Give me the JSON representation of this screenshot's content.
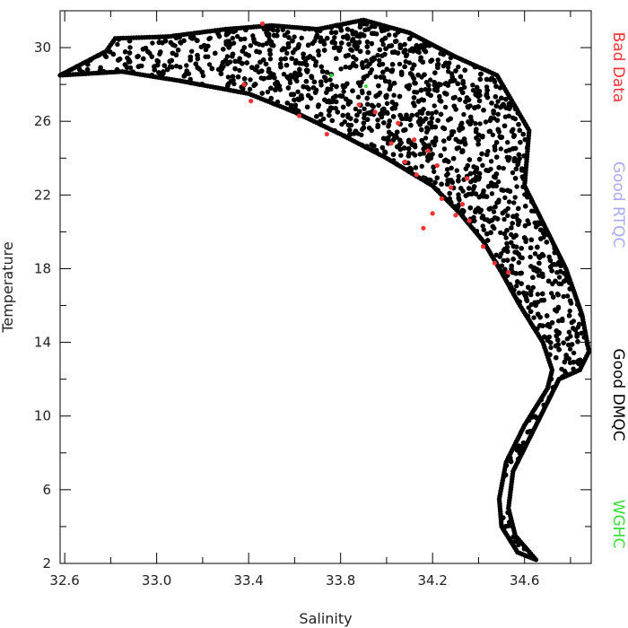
{
  "chart_data": {
    "type": "scatter",
    "title": "",
    "xlabel": "Salinity",
    "ylabel": "Temperature",
    "xlim": [
      32.58,
      34.89
    ],
    "ylim": [
      2,
      32
    ],
    "x_ticks": [
      32.6,
      33.0,
      33.4,
      33.8,
      34.2,
      34.6
    ],
    "x_tick_labels": [
      "32.6",
      "33.0",
      "33.4",
      "33.8",
      "34.2",
      "34.6"
    ],
    "y_ticks": [
      2,
      6,
      10,
      14,
      18,
      22,
      26,
      30
    ],
    "y_tick_labels": [
      "2",
      "6",
      "10",
      "14",
      "18",
      "22",
      "26",
      "30"
    ],
    "grid": false,
    "legend_position": "right, vertical",
    "series": [
      {
        "name": "Bad Data",
        "color": "#ff3333",
        "points": [
          [
            33.46,
            31.3
          ],
          [
            33.38,
            28.0
          ],
          [
            33.41,
            27.1
          ],
          [
            33.62,
            26.3
          ],
          [
            33.74,
            25.3
          ],
          [
            33.95,
            26.5
          ],
          [
            34.05,
            25.9
          ],
          [
            34.12,
            25.0
          ],
          [
            34.18,
            24.4
          ],
          [
            34.08,
            23.8
          ],
          [
            34.13,
            23.1
          ],
          [
            34.22,
            23.6
          ],
          [
            34.28,
            22.4
          ],
          [
            34.24,
            21.8
          ],
          [
            34.33,
            21.5
          ],
          [
            34.3,
            20.9
          ],
          [
            34.36,
            20.6
          ],
          [
            34.42,
            19.2
          ],
          [
            34.47,
            18.3
          ],
          [
            34.53,
            17.8
          ],
          [
            34.2,
            21.0
          ],
          [
            34.02,
            24.8
          ],
          [
            33.88,
            26.9
          ],
          [
            34.35,
            22.9
          ],
          [
            34.16,
            20.2
          ]
        ]
      },
      {
        "name": "Good RTQC",
        "color": "#a9a9ff",
        "points": []
      },
      {
        "name": "Good DMQC",
        "color": "#000000",
        "envelope": [
          [
            32.58,
            28.5
          ],
          [
            32.78,
            29.8
          ],
          [
            32.82,
            30.5
          ],
          [
            33.05,
            30.6
          ],
          [
            33.3,
            31.0
          ],
          [
            33.5,
            31.2
          ],
          [
            33.7,
            31.0
          ],
          [
            33.9,
            31.5
          ],
          [
            34.1,
            30.8
          ],
          [
            34.3,
            29.5
          ],
          [
            34.48,
            28.5
          ],
          [
            34.55,
            27.0
          ],
          [
            34.62,
            25.5
          ],
          [
            34.6,
            22.5
          ],
          [
            34.68,
            20.5
          ],
          [
            34.78,
            18.0
          ],
          [
            34.85,
            15.5
          ],
          [
            34.88,
            13.5
          ],
          [
            34.84,
            12.5
          ],
          [
            34.75,
            12.0
          ],
          [
            34.65,
            9.5
          ],
          [
            34.55,
            7.0
          ],
          [
            34.53,
            5.0
          ],
          [
            34.56,
            3.5
          ],
          [
            34.65,
            2.2
          ],
          [
            34.57,
            2.6
          ],
          [
            34.5,
            4.0
          ],
          [
            34.49,
            5.5
          ],
          [
            34.52,
            7.5
          ],
          [
            34.6,
            9.5
          ],
          [
            34.7,
            11.5
          ],
          [
            34.72,
            12.5
          ],
          [
            34.68,
            14.0
          ],
          [
            34.58,
            16.0
          ],
          [
            34.5,
            17.8
          ],
          [
            34.42,
            19.5
          ],
          [
            34.32,
            21.0
          ],
          [
            34.2,
            22.5
          ],
          [
            34.0,
            24.0
          ],
          [
            33.8,
            25.3
          ],
          [
            33.6,
            26.5
          ],
          [
            33.4,
            27.5
          ],
          [
            33.1,
            28.2
          ],
          [
            32.95,
            28.5
          ],
          [
            32.85,
            28.7
          ],
          [
            32.58,
            28.5
          ]
        ]
      },
      {
        "name": "WGHC",
        "color": "#33dd33",
        "points": [
          [
            33.91,
            27.9
          ],
          [
            33.76,
            28.5
          ]
        ]
      }
    ]
  }
}
